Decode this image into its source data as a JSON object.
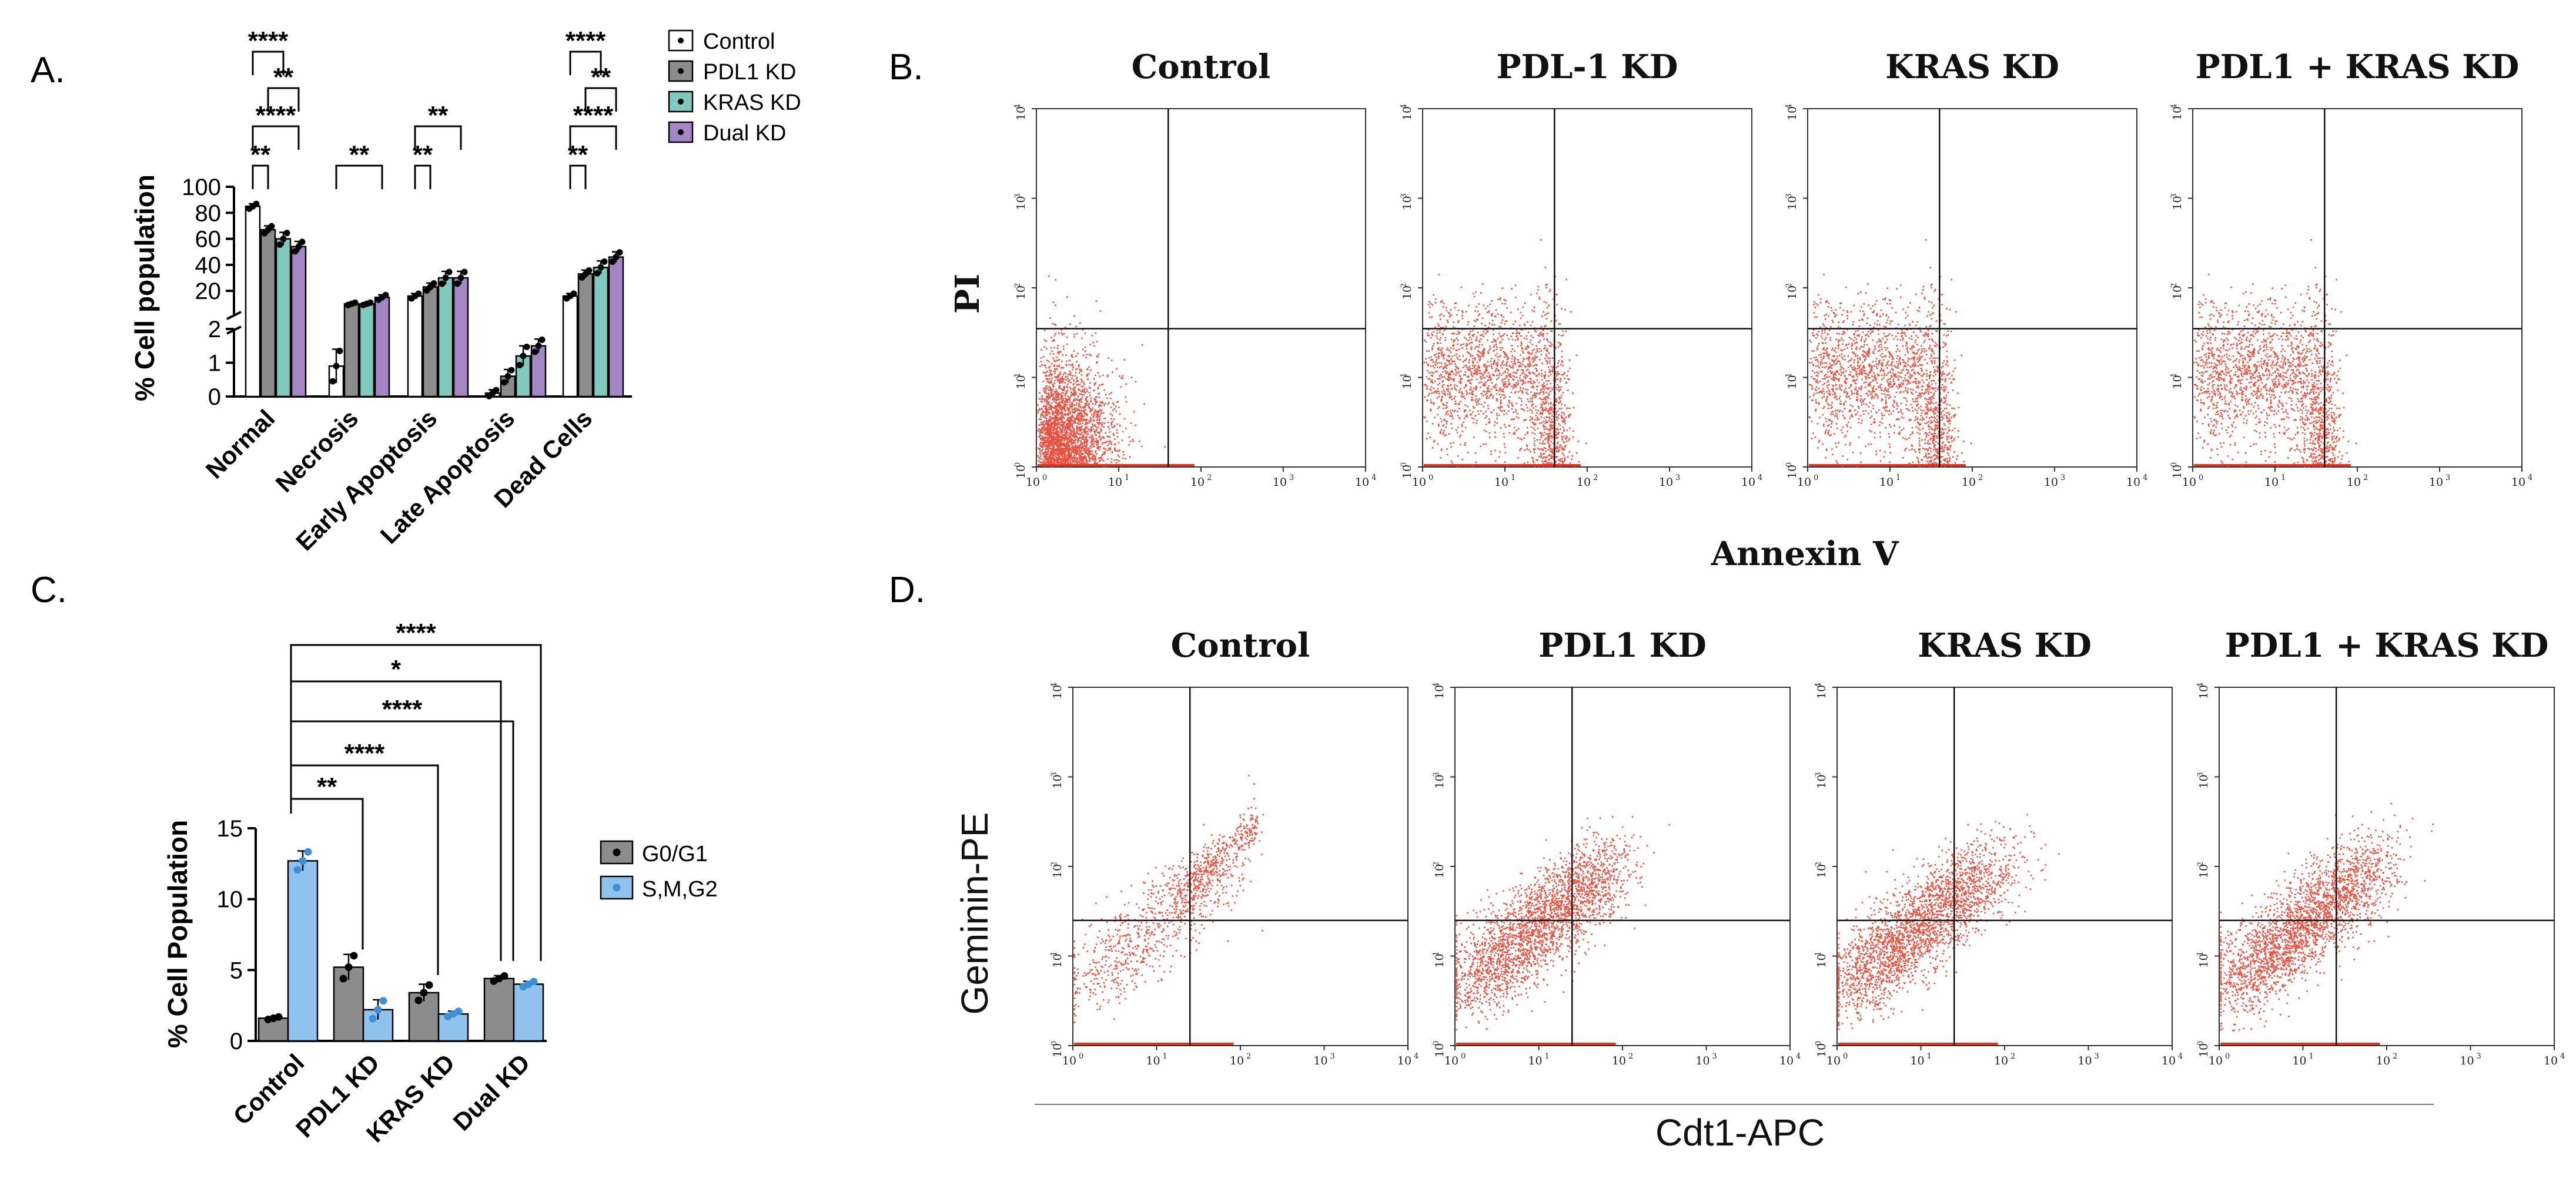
{
  "panel_labels": {
    "a": "A.",
    "b": "B.",
    "c": "C.",
    "d": "D."
  },
  "colors": {
    "control": "#ffffff",
    "pdl1": "#8c8c8c",
    "kras": "#7fc9bd",
    "dual": "#a586c4",
    "g0g1": "#8c8c8c",
    "smg2": "#8fc3ee",
    "dots": "#e8321e"
  },
  "chart_data": [
    {
      "id": "A",
      "type": "bar",
      "title": "",
      "ylabel": "% Cell population",
      "xlabel": "",
      "categories": [
        "Normal",
        "Necrosis",
        "Early Apoptosis",
        "Late Apoptosis",
        "Dead Cells"
      ],
      "series": [
        {
          "name": "Control",
          "values": [
            85,
            0.9,
            16,
            0.1,
            16
          ],
          "sem": [
            2,
            0.5,
            2,
            0.1,
            2
          ]
        },
        {
          "name": "PDL1 KD",
          "values": [
            67,
            10,
            23,
            0.6,
            33
          ],
          "sem": [
            3,
            1,
            3,
            0.2,
            3
          ]
        },
        {
          "name": "KRAS KD",
          "values": [
            60,
            10,
            30,
            1.2,
            38
          ],
          "sem": [
            5,
            1,
            5,
            0.3,
            5
          ]
        },
        {
          "name": "Dual KD",
          "values": [
            54,
            15,
            30,
            1.5,
            46
          ],
          "sem": [
            4,
            2,
            5,
            0.2,
            4
          ]
        }
      ],
      "yaxis_break": {
        "lower_range": [
          0,
          2
        ],
        "upper_range": [
          2,
          100
        ]
      },
      "yticks": [
        "0",
        "1",
        "2",
        "20",
        "40",
        "60",
        "80",
        "100"
      ],
      "significance": [
        {
          "category": "Normal",
          "label": "**"
        },
        {
          "category": "Normal",
          "label": "****"
        },
        {
          "category": "Normal",
          "label": "**"
        },
        {
          "category": "Normal",
          "label": "****"
        },
        {
          "category": "Necrosis",
          "label": "**"
        },
        {
          "category": "Early Apoptosis",
          "label": "**"
        },
        {
          "category": "Early Apoptosis",
          "label": "**"
        },
        {
          "category": "Dead Cells",
          "label": "**"
        },
        {
          "category": "Dead Cells",
          "label": "****"
        },
        {
          "category": "Dead Cells",
          "label": "**"
        },
        {
          "category": "Dead Cells",
          "label": "****"
        }
      ],
      "legend": [
        "Control",
        "PDL1 KD",
        "KRAS KD",
        "Dual KD"
      ]
    },
    {
      "id": "C",
      "type": "bar",
      "title": "",
      "ylabel": "% Cell Population",
      "xlabel": "",
      "categories": [
        "Control",
        "PDL1 KD",
        "KRAS KD",
        "Dual KD"
      ],
      "series": [
        {
          "name": "G0/G1",
          "values": [
            1.6,
            5.2,
            3.4,
            4.4
          ],
          "sem": [
            0.1,
            0.9,
            0.6,
            0.2
          ]
        },
        {
          "name": "S,M,G2",
          "values": [
            12.7,
            2.2,
            1.9,
            4.0
          ],
          "sem": [
            0.7,
            0.7,
            0.2,
            0.2
          ]
        }
      ],
      "ylim": [
        0,
        15
      ],
      "yticks": [
        "0",
        "5",
        "10",
        "15"
      ],
      "significance": [
        {
          "from": "Control",
          "to": "PDL1 KD",
          "label": "**"
        },
        {
          "from": "Control",
          "to": "KRAS KD",
          "label": "****"
        },
        {
          "from": "Control",
          "to": "Dual KD",
          "label": "****"
        },
        {
          "from": "Control",
          "to": "Dual KD",
          "label": "*"
        },
        {
          "from": "Control",
          "to": "Dual KD",
          "label": "****"
        }
      ],
      "legend": [
        "G0/G1",
        "S,M,G2"
      ]
    },
    {
      "id": "B",
      "type": "scatter",
      "xlabel": "Annexin V",
      "ylabel": "PI",
      "xscale": "log",
      "yscale": "log",
      "xlim": [
        1,
        10000
      ],
      "ylim": [
        1,
        10000
      ],
      "gate": {
        "x": 40,
        "y": 35
      },
      "tick_base": "10",
      "tick_exps": [
        "0",
        "1",
        "2",
        "3",
        "4"
      ],
      "plots": [
        {
          "title": "Control",
          "pattern": "low"
        },
        {
          "title": "PDL-1 KD",
          "pattern": "arc"
        },
        {
          "title": "KRAS KD",
          "pattern": "arc"
        },
        {
          "title": "PDL1 + KRAS KD",
          "pattern": "arc"
        }
      ]
    },
    {
      "id": "D",
      "type": "scatter",
      "xlabel": "Cdt1-APC",
      "ylabel": "Geminin-PE",
      "xscale": "log",
      "yscale": "log",
      "xlim": [
        1,
        10000
      ],
      "ylim": [
        1,
        10000
      ],
      "gate": {
        "x": 25,
        "y": 25
      },
      "tick_base": "10",
      "tick_exps": [
        "0",
        "1",
        "2",
        "3",
        "4"
      ],
      "plots": [
        {
          "title": "Control",
          "pattern": "diag-high"
        },
        {
          "title": "PDL1 KD",
          "pattern": "diag"
        },
        {
          "title": "KRAS KD",
          "pattern": "diag"
        },
        {
          "title": "PDL1 + KRAS KD",
          "pattern": "diag"
        }
      ]
    }
  ]
}
